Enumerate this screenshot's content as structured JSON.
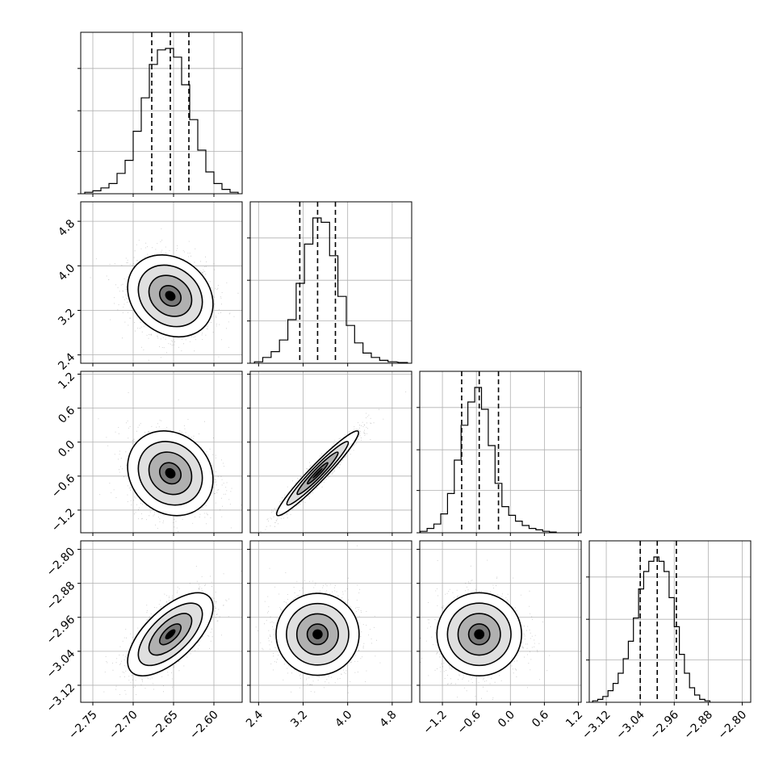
{
  "chart_data": {
    "type": "corner",
    "parameters": [
      {
        "range": [
          -2.765,
          -2.565
        ],
        "ticks": [
          -2.75,
          -2.7,
          -2.65,
          -2.6
        ],
        "tick_labels": [
          "−2.75",
          "−2.70",
          "−2.65",
          "−2.60"
        ],
        "quantiles": [
          -2.677,
          -2.654,
          -2.631
        ],
        "hist_x": [
          -2.755,
          -2.745,
          -2.735,
          -2.725,
          -2.715,
          -2.705,
          -2.695,
          -2.685,
          -2.675,
          -2.665,
          -2.655,
          -2.645,
          -2.635,
          -2.625,
          -2.615,
          -2.605,
          -2.595,
          -2.585,
          -2.575
        ],
        "hist_counts": [
          0.01,
          0.02,
          0.04,
          0.07,
          0.14,
          0.23,
          0.43,
          0.66,
          0.89,
          0.99,
          1.0,
          0.94,
          0.75,
          0.51,
          0.3,
          0.15,
          0.07,
          0.03,
          0.01
        ]
      },
      {
        "range": [
          2.25,
          5.15
        ],
        "ticks": [
          2.4,
          3.2,
          4.0,
          4.8
        ],
        "tick_labels": [
          "2.4",
          "3.2",
          "4.0",
          "4.8"
        ],
        "quantiles": [
          3.14,
          3.46,
          3.78
        ],
        "hist_x": [
          2.4,
          2.55,
          2.7,
          2.85,
          3.0,
          3.15,
          3.3,
          3.45,
          3.6,
          3.75,
          3.9,
          4.05,
          4.2,
          4.35,
          4.5,
          4.65,
          4.8,
          5.0
        ],
        "hist_counts": [
          0.01,
          0.04,
          0.08,
          0.16,
          0.3,
          0.55,
          0.82,
          1.0,
          0.97,
          0.74,
          0.46,
          0.26,
          0.14,
          0.07,
          0.04,
          0.02,
          0.01,
          0.005
        ]
      },
      {
        "range": [
          -1.6,
          1.25
        ],
        "ticks": [
          -1.2,
          -0.6,
          0.0,
          0.6,
          1.2
        ],
        "tick_labels": [
          "−1.2",
          "−0.6",
          "0.0",
          "0.6",
          "1.2"
        ],
        "quantiles": [
          -0.86,
          -0.55,
          -0.21
        ],
        "hist_x": [
          -1.53,
          -1.41,
          -1.29,
          -1.17,
          -1.05,
          -0.93,
          -0.81,
          -0.69,
          -0.57,
          -0.45,
          -0.33,
          -0.21,
          -0.09,
          0.03,
          0.15,
          0.27,
          0.39,
          0.51,
          0.63,
          0.75
        ],
        "hist_counts": [
          0.01,
          0.03,
          0.06,
          0.13,
          0.27,
          0.5,
          0.74,
          0.9,
          1.0,
          0.85,
          0.6,
          0.34,
          0.18,
          0.12,
          0.08,
          0.05,
          0.03,
          0.02,
          0.01,
          0.005
        ]
      },
      {
        "range": [
          -3.16,
          -2.78
        ],
        "ticks": [
          -3.12,
          -3.04,
          -2.96,
          -2.88,
          -2.8
        ],
        "tick_labels": [
          "−3.12",
          "−3.04",
          "−2.96",
          "−2.88",
          "−2.80"
        ],
        "quantiles": [
          -3.04,
          -3.0,
          -2.955
        ],
        "hist_x": [
          -3.146,
          -3.134,
          -3.122,
          -3.11,
          -3.098,
          -3.086,
          -3.074,
          -3.062,
          -3.05,
          -3.038,
          -3.026,
          -3.014,
          -3.002,
          -2.99,
          -2.978,
          -2.966,
          -2.954,
          -2.942,
          -2.93,
          -2.918,
          -2.906,
          -2.894,
          -2.882
        ],
        "hist_counts": [
          0.01,
          0.02,
          0.04,
          0.08,
          0.13,
          0.2,
          0.3,
          0.42,
          0.58,
          0.78,
          0.9,
          0.97,
          1.0,
          0.97,
          0.9,
          0.72,
          0.52,
          0.33,
          0.2,
          0.1,
          0.05,
          0.02,
          0.01
        ]
      }
    ],
    "correlations": [
      {
        "row": 1,
        "col": 0,
        "rho": -0.2
      },
      {
        "row": 2,
        "col": 0,
        "rho": -0.15
      },
      {
        "row": 2,
        "col": 1,
        "rho": 0.96
      },
      {
        "row": 3,
        "col": 0,
        "rho": 0.65
      },
      {
        "row": 3,
        "col": 1,
        "rho": 0.0
      },
      {
        "row": 3,
        "col": 2,
        "rho": 0.0
      }
    ],
    "contour_levels_sigma": [
      0.5,
      1.0,
      1.5,
      2.0
    ],
    "grid": true,
    "title": "",
    "axis_labels": []
  }
}
